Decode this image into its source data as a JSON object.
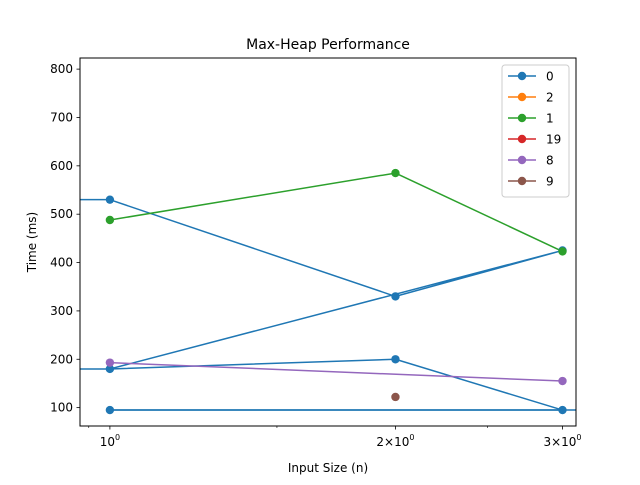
{
  "chart_data": {
    "type": "line",
    "title": "Max-Heap Performance",
    "xlabel": "Input Size (n)",
    "ylabel": "Time (ms)",
    "xscale": "log",
    "xlim": [
      0.93,
      3.1
    ],
    "ylim": [
      62,
      823
    ],
    "x_ticks": [
      {
        "value": 1,
        "base": "10",
        "exp": "0"
      },
      {
        "value": 2,
        "coef": "2×",
        "base": "10",
        "exp": "0"
      },
      {
        "value": 3,
        "coef": "3×",
        "base": "10",
        "exp": "0"
      }
    ],
    "y_ticks": [
      100,
      200,
      300,
      400,
      500,
      600,
      700,
      800
    ],
    "grid": false,
    "legend_position": "top-right",
    "series": [
      {
        "name": "0",
        "color": "#1f77b4",
        "x": [
          1,
          2,
          3,
          1,
          2,
          3,
          1
        ],
        "y": [
          530,
          330,
          425,
          180,
          200,
          95,
          95
        ],
        "prefix_x": [
          0.9,
          0.9
        ],
        "prefix_y": [
          530,
          180
        ],
        "prefix_markers": false,
        "wrap_from_index": 6
      },
      {
        "name": "2",
        "color": "#ff7f0e",
        "x": [],
        "y": []
      },
      {
        "name": "1",
        "color": "#2ca02c",
        "x": [
          1,
          2,
          3
        ],
        "y": [
          488,
          585,
          423
        ]
      },
      {
        "name": "19",
        "color": "#d62728",
        "x": [],
        "y": []
      },
      {
        "name": "8",
        "color": "#9467bd",
        "x": [
          1,
          3
        ],
        "y": [
          193,
          155
        ]
      },
      {
        "name": "9",
        "color": "#8c564b",
        "x": [
          2
        ],
        "y": [
          122
        ]
      }
    ]
  }
}
